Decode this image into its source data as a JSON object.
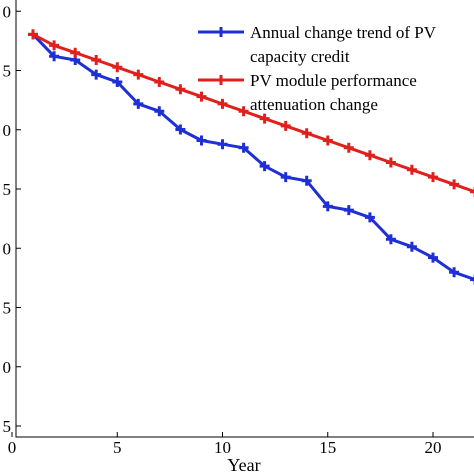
{
  "chart_data": {
    "type": "line",
    "title": "",
    "xlabel": "Year",
    "ylabel": "",
    "xlim": [
      0,
      22
    ],
    "ylim": [
      0,
      12
    ],
    "x_ticks": [
      0,
      5,
      10,
      15,
      20
    ],
    "y_ticks": [
      {
        "value": 0,
        "label": "5"
      },
      {
        "value": 1,
        "label": "0"
      },
      {
        "value": 2,
        "label": "5"
      },
      {
        "value": 3,
        "label": "0"
      },
      {
        "value": 4,
        "label": "5"
      },
      {
        "value": 5,
        "label": "0"
      },
      {
        "value": 6,
        "label": "5"
      },
      {
        "value": 7,
        "label": "0"
      },
      {
        "value": 8,
        "label": "5"
      },
      {
        "value": 9,
        "label": "0"
      },
      {
        "value": 10,
        "label": "5"
      },
      {
        "value": 11,
        "label": "0"
      }
    ],
    "grid": false,
    "legend_position": "top-right",
    "legend": [
      {
        "lines": [
          "Annual change trend of PV",
          "capacity credit"
        ],
        "color": "#1f2fd6"
      },
      {
        "lines": [
          "PV module performance",
          "attenuation change"
        ],
        "color": "#e0201c"
      }
    ],
    "series": [
      {
        "color": "#1f2fd6",
        "x": [
          1,
          2,
          3,
          4,
          5,
          6,
          7,
          8,
          9,
          10,
          11,
          12,
          13,
          14,
          15,
          16,
          17,
          18,
          19,
          20,
          21,
          22
        ],
        "y": [
          10.7,
          10.1,
          10.0,
          9.6,
          9.4,
          8.8,
          8.6,
          8.1,
          7.8,
          7.7,
          7.6,
          7.1,
          6.8,
          6.7,
          6.0,
          5.9,
          5.7,
          5.1,
          4.9,
          4.6,
          4.2,
          4.0
        ]
      },
      {
        "color": "#e0201c",
        "x": [
          1,
          2,
          3,
          4,
          5,
          6,
          7,
          8,
          9,
          10,
          11,
          12,
          13,
          14,
          15,
          16,
          17,
          18,
          19,
          20,
          21,
          22
        ],
        "y": [
          10.7,
          10.4,
          10.2,
          10.0,
          9.8,
          9.6,
          9.4,
          9.2,
          9.0,
          8.8,
          8.6,
          8.4,
          8.2,
          8.0,
          7.8,
          7.6,
          7.4,
          7.2,
          7.0,
          6.8,
          6.6,
          6.4
        ]
      }
    ]
  }
}
